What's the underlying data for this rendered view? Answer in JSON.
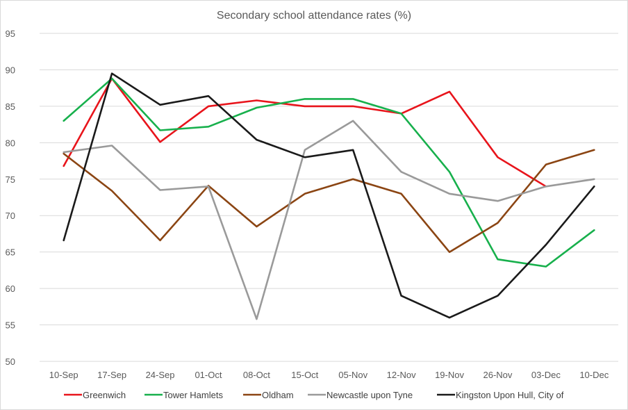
{
  "chart_data": {
    "type": "line",
    "title": "Secondary school attendance rates (%)",
    "xlabel": "",
    "ylabel": "",
    "categories": [
      "10-Sep",
      "17-Sep",
      "24-Sep",
      "01-Oct",
      "08-Oct",
      "15-Oct",
      "05-Nov",
      "12-Nov",
      "19-Nov",
      "26-Nov",
      "03-Dec",
      "10-Dec"
    ],
    "ylim": [
      50,
      95
    ],
    "yticks": [
      50,
      55,
      60,
      65,
      70,
      75,
      80,
      85,
      90,
      95
    ],
    "grid": true,
    "legend_position": "bottom",
    "series": [
      {
        "name": "Greenwich",
        "color": "#e8141b",
        "values": [
          76.8,
          88.8,
          80.1,
          85.0,
          85.8,
          85.0,
          85.0,
          84.0,
          87.0,
          78.0,
          74.0,
          null
        ]
      },
      {
        "name": "Tower Hamlets",
        "color": "#17b04c",
        "values": [
          83.0,
          88.8,
          81.7,
          82.2,
          84.8,
          86.0,
          86.0,
          84.0,
          76.0,
          64.0,
          63.0,
          68.0
        ]
      },
      {
        "name": "Oldham",
        "color": "#8b4513",
        "values": [
          78.5,
          73.4,
          66.6,
          74.1,
          68.5,
          73.0,
          75.0,
          73.0,
          65.0,
          69.0,
          77.0,
          79.0
        ]
      },
      {
        "name": "Newcastle upon Tyne",
        "color": "#9a9a9a",
        "values": [
          78.7,
          79.6,
          73.5,
          74.0,
          55.8,
          79.0,
          83.0,
          76.0,
          73.0,
          72.0,
          74.0,
          75.0
        ]
      },
      {
        "name": "Kingston Upon Hull, City of",
        "color": "#1a1a1a",
        "values": [
          66.6,
          89.5,
          85.2,
          86.4,
          80.4,
          78.0,
          79.0,
          59.0,
          56.0,
          59.0,
          66.0,
          74.0
        ]
      }
    ]
  }
}
